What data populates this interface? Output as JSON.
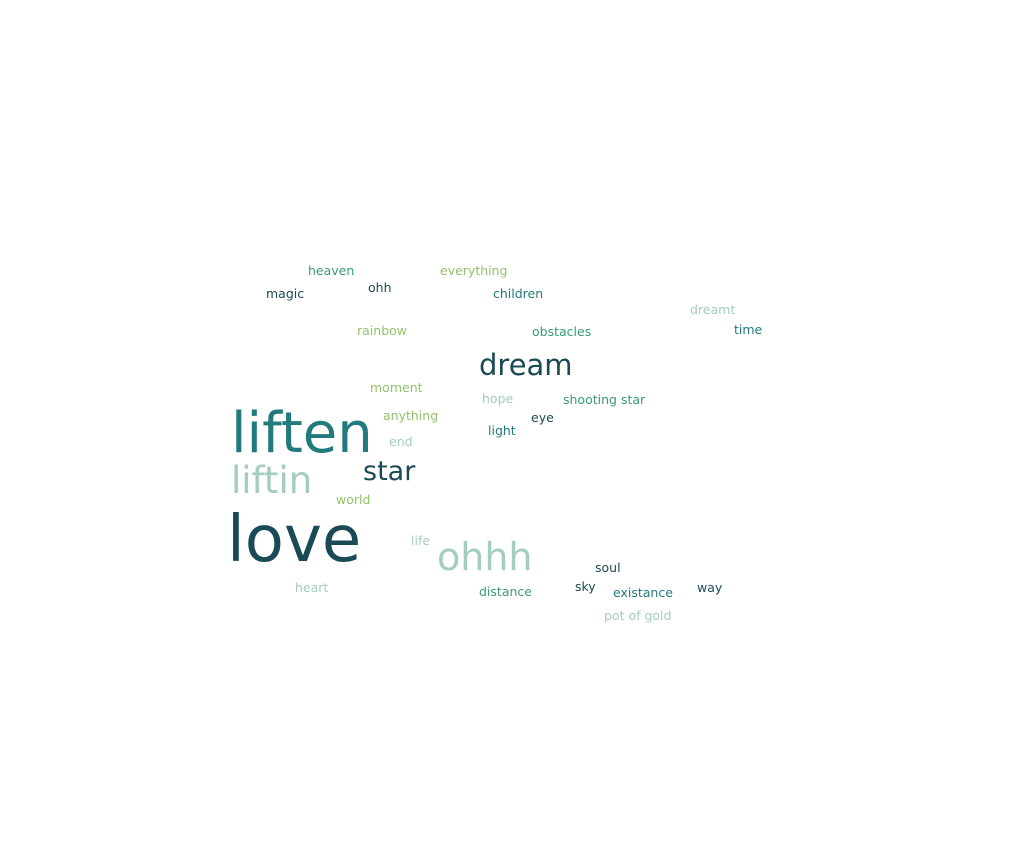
{
  "colors": {
    "dark": "#1a4a55",
    "teal": "#217a7c",
    "green": "#3a9a78",
    "lime": "#93c16b",
    "pale": "#a3cdbd"
  },
  "chart_data": {
    "type": "wordcloud",
    "words": [
      {
        "text": "love",
        "weight": 100,
        "color": "dark"
      },
      {
        "text": "liften",
        "weight": 88,
        "color": "teal"
      },
      {
        "text": "ohhh",
        "weight": 62,
        "color": "pale"
      },
      {
        "text": "liftin",
        "weight": 60,
        "color": "pale"
      },
      {
        "text": "dream",
        "weight": 46,
        "color": "dark"
      },
      {
        "text": "star",
        "weight": 44,
        "color": "dark"
      },
      {
        "text": "heaven",
        "weight": 12,
        "color": "green"
      },
      {
        "text": "everything",
        "weight": 12,
        "color": "lime"
      },
      {
        "text": "magic",
        "weight": 12,
        "color": "dark"
      },
      {
        "text": "ohh",
        "weight": 12,
        "color": "dark"
      },
      {
        "text": "children",
        "weight": 12,
        "color": "teal"
      },
      {
        "text": "dreamt",
        "weight": 12,
        "color": "pale"
      },
      {
        "text": "rainbow",
        "weight": 12,
        "color": "lime"
      },
      {
        "text": "obstacles",
        "weight": 12,
        "color": "green"
      },
      {
        "text": "time",
        "weight": 12,
        "color": "teal"
      },
      {
        "text": "moment",
        "weight": 12,
        "color": "lime"
      },
      {
        "text": "hope",
        "weight": 12,
        "color": "pale"
      },
      {
        "text": "shooting star",
        "weight": 12,
        "color": "green"
      },
      {
        "text": "anything",
        "weight": 12,
        "color": "lime"
      },
      {
        "text": "eye",
        "weight": 12,
        "color": "dark"
      },
      {
        "text": "end",
        "weight": 12,
        "color": "pale"
      },
      {
        "text": "light",
        "weight": 12,
        "color": "teal"
      },
      {
        "text": "world",
        "weight": 12,
        "color": "lime"
      },
      {
        "text": "life",
        "weight": 12,
        "color": "pale"
      },
      {
        "text": "soul",
        "weight": 12,
        "color": "dark"
      },
      {
        "text": "heart",
        "weight": 12,
        "color": "pale"
      },
      {
        "text": "sky",
        "weight": 12,
        "color": "dark"
      },
      {
        "text": "distance",
        "weight": 12,
        "color": "green"
      },
      {
        "text": "existance",
        "weight": 12,
        "color": "teal"
      },
      {
        "text": "way",
        "weight": 12,
        "color": "dark"
      },
      {
        "text": "pot of gold",
        "weight": 12,
        "color": "pale"
      }
    ]
  }
}
